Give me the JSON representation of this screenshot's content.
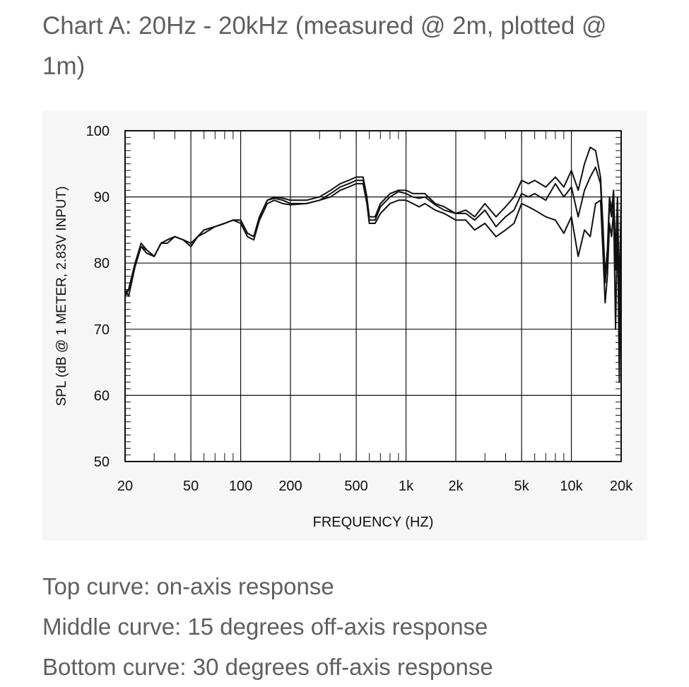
{
  "title": "Chart A: 20Hz - 20kHz (measured @ 2m, plotted @ 1m)",
  "captions": [
    "Top curve: on-axis response",
    "Middle curve: 15 degrees off-axis response",
    "Bottom curve: 30 degrees off-axis response"
  ],
  "colors": {
    "background": "#ffffff",
    "panel": "#f6f6f6",
    "ink": "#111111",
    "text": "#5f5f5f"
  },
  "chart_data": {
    "type": "line",
    "xlabel": "FREQUENCY  (HZ)",
    "ylabel": "SPL (dB @ 1 METER, 2.83V INPUT)",
    "xscale": "log",
    "xlim": [
      20,
      20000
    ],
    "ylim": [
      50,
      100
    ],
    "xticks": [
      {
        "value": 20,
        "label": "20"
      },
      {
        "value": 50,
        "label": "50"
      },
      {
        "value": 100,
        "label": "100"
      },
      {
        "value": 200,
        "label": "200"
      },
      {
        "value": 500,
        "label": "500"
      },
      {
        "value": 1000,
        "label": "1k"
      },
      {
        "value": 2000,
        "label": "2k"
      },
      {
        "value": 5000,
        "label": "5k"
      },
      {
        "value": 10000,
        "label": "10k"
      },
      {
        "value": 20000,
        "label": "20k"
      }
    ],
    "yticks": [
      {
        "value": 50,
        "label": "50"
      },
      {
        "value": 60,
        "label": "60"
      },
      {
        "value": 70,
        "label": "70"
      },
      {
        "value": 80,
        "label": "80"
      },
      {
        "value": 90,
        "label": "90"
      },
      {
        "value": 100,
        "label": "100"
      }
    ],
    "grid": true,
    "series": [
      {
        "x": [
          20,
          21,
          23,
          25,
          27,
          30,
          33,
          36,
          40,
          45,
          50,
          55,
          60,
          70,
          80,
          90,
          100,
          110,
          120,
          130,
          145,
          160,
          180,
          200,
          250,
          300,
          350,
          400,
          450,
          500,
          550,
          580,
          600,
          650,
          700,
          800,
          900,
          1000,
          1100,
          1200,
          1300,
          1500,
          1700,
          2000,
          2300,
          2600,
          3000,
          3500,
          4000,
          4500,
          5000,
          5500,
          6000,
          7000,
          8000,
          9000,
          10000,
          11000,
          12000,
          13000,
          14000,
          15000,
          15500,
          16000,
          16500,
          17000,
          17500,
          18000,
          18500,
          19000,
          19500,
          20000
        ],
        "y": [
          75,
          76,
          80,
          83,
          82,
          81,
          83,
          83.5,
          84,
          83.5,
          83,
          84,
          85,
          85.5,
          86,
          86.5,
          86.5,
          84.5,
          84,
          87,
          89.5,
          90,
          89.8,
          89.5,
          89.5,
          90,
          91,
          92,
          92.5,
          93,
          93,
          90,
          87,
          87,
          89,
          90.5,
          91,
          91,
          90.5,
          90.5,
          90.5,
          89,
          88.5,
          87.5,
          88,
          87,
          89,
          87,
          88.5,
          90,
          92.5,
          92,
          92.5,
          91.5,
          93,
          91.5,
          94,
          91,
          95,
          97.5,
          97,
          93,
          86,
          78,
          82,
          90,
          88,
          91,
          81,
          90,
          75,
          90
        ]
      },
      {
        "x": [
          20,
          21,
          23,
          25,
          27,
          30,
          33,
          36,
          40,
          45,
          50,
          55,
          60,
          70,
          80,
          90,
          100,
          110,
          120,
          130,
          145,
          160,
          180,
          200,
          250,
          300,
          350,
          400,
          450,
          500,
          550,
          580,
          600,
          650,
          700,
          800,
          900,
          1000,
          1100,
          1200,
          1300,
          1500,
          1700,
          2000,
          2300,
          2600,
          3000,
          3500,
          4000,
          4500,
          5000,
          5500,
          6000,
          7000,
          8000,
          9000,
          10000,
          11000,
          12000,
          13000,
          14000,
          15000,
          15500,
          16000,
          16500,
          17000,
          17500,
          18000,
          18500,
          19000,
          19500,
          20000
        ],
        "y": [
          75.5,
          76,
          80,
          82.5,
          82,
          81,
          83,
          83.5,
          84,
          83.5,
          82.5,
          84,
          85,
          85.5,
          86,
          86.5,
          86.5,
          84.5,
          84,
          87,
          89.5,
          89.8,
          89.5,
          89,
          89,
          89.5,
          90.5,
          91.5,
          92,
          92.5,
          92.5,
          89.5,
          86.5,
          86.5,
          88.5,
          90,
          90.8,
          90.5,
          90,
          89.8,
          90,
          88.8,
          88,
          87.5,
          87.5,
          86.5,
          88,
          85.5,
          87,
          88,
          90.5,
          90,
          90.5,
          89.5,
          92,
          90,
          91.5,
          87,
          91,
          93,
          94.5,
          92,
          85,
          77,
          81,
          89,
          87,
          90,
          79,
          89,
          68,
          89
        ]
      },
      {
        "x": [
          20,
          21,
          23,
          25,
          27,
          30,
          33,
          36,
          40,
          45,
          50,
          55,
          60,
          70,
          80,
          90,
          100,
          110,
          120,
          130,
          145,
          160,
          180,
          200,
          250,
          300,
          350,
          400,
          450,
          500,
          550,
          580,
          600,
          650,
          700,
          800,
          900,
          1000,
          1100,
          1200,
          1300,
          1500,
          1700,
          2000,
          2300,
          2600,
          3000,
          3500,
          4000,
          4500,
          5000,
          5500,
          6000,
          7000,
          8000,
          9000,
          10000,
          11000,
          12000,
          13000,
          14000,
          15000,
          15500,
          16000,
          16500,
          17000,
          17500,
          18000,
          18500,
          19000,
          19500,
          20000
        ],
        "y": [
          76,
          75,
          79.5,
          82.5,
          81.5,
          81,
          83,
          83,
          84,
          83.5,
          82.5,
          84,
          84.5,
          85.5,
          86,
          86.5,
          86,
          84,
          83.5,
          86.5,
          89,
          89.5,
          89,
          88.8,
          89,
          89.5,
          90,
          91,
          91.5,
          92,
          92,
          89,
          86,
          86,
          87.5,
          89,
          89.5,
          89.5,
          89,
          88.5,
          89,
          88,
          87.5,
          86.5,
          86.5,
          85,
          86,
          84,
          85,
          86,
          89,
          88.5,
          88,
          87,
          86.5,
          84.5,
          87,
          81,
          85,
          84,
          89,
          89.5,
          82,
          74,
          78,
          86,
          84,
          88,
          70,
          87,
          62,
          88
        ]
      }
    ]
  }
}
